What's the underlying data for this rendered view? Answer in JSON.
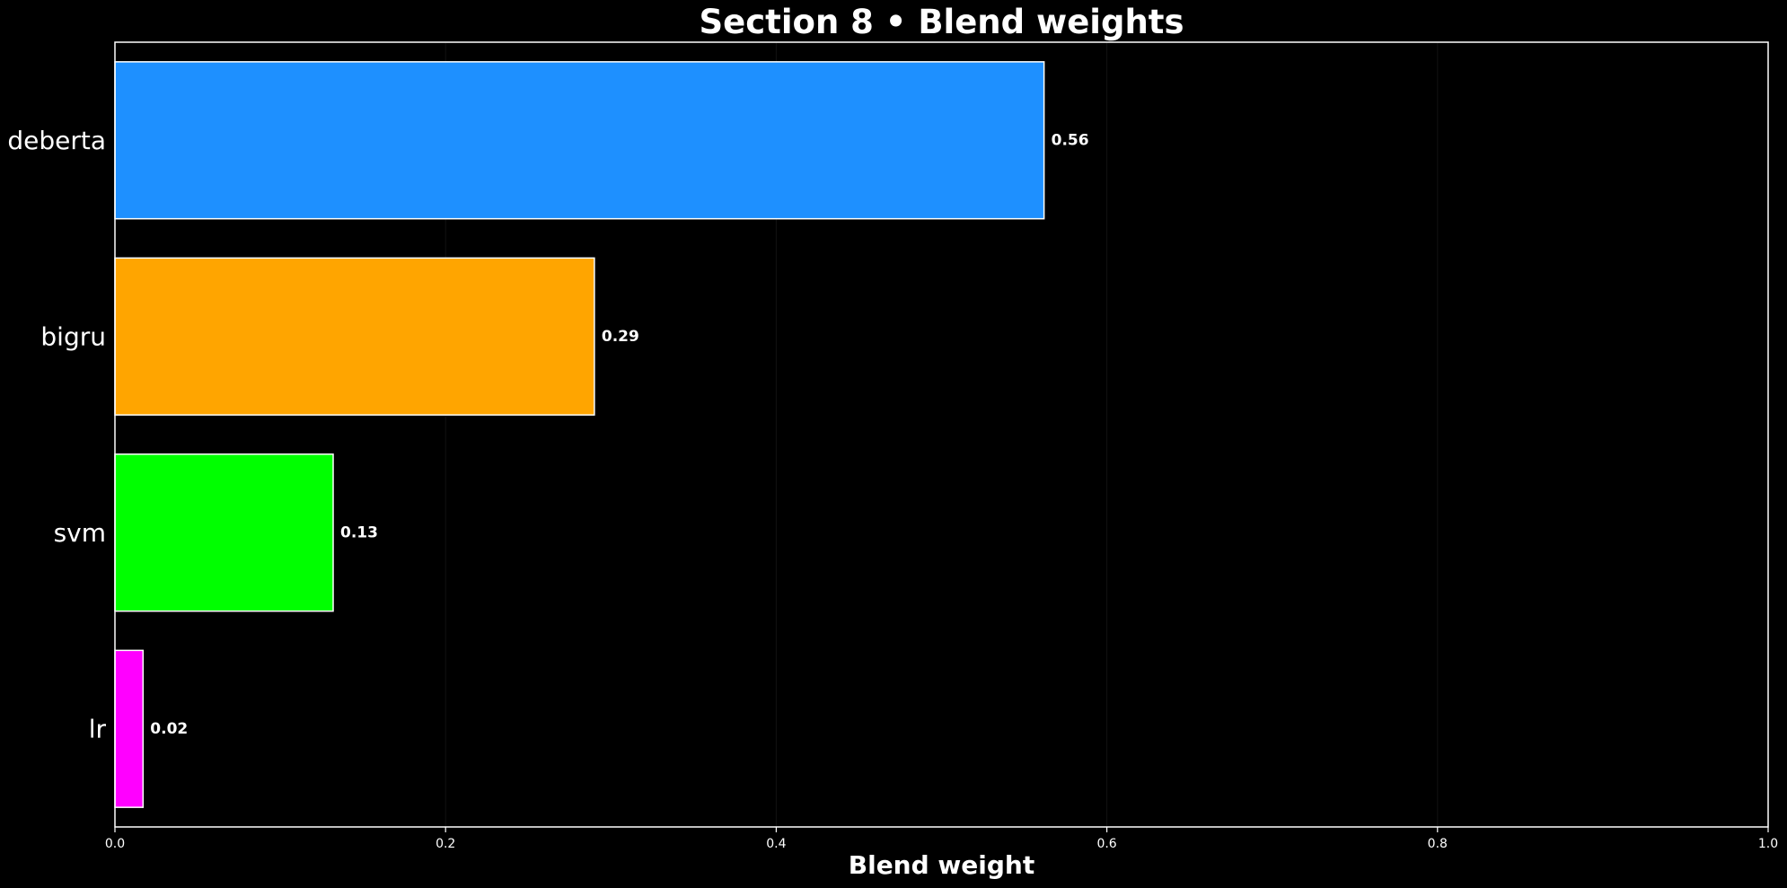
{
  "chart_data": {
    "type": "bar",
    "orientation": "horizontal",
    "title": "Section 8 • Blend weights",
    "xlabel": "Blend weight",
    "ylabel": "",
    "xlim": [
      0,
      1.0
    ],
    "x_ticks": [
      0.0,
      0.2,
      0.4,
      0.6,
      0.8,
      1.0
    ],
    "x_tick_labels": [
      "0.0",
      "0.2",
      "0.4",
      "0.6",
      "0.8",
      "1.0"
    ],
    "grid": "x-vertical-faint",
    "legend": "none",
    "categories": [
      "deberta",
      "bigru",
      "svm",
      "lr"
    ],
    "values": [
      0.562,
      0.29,
      0.132,
      0.017
    ],
    "value_labels": [
      "0.56",
      "0.29",
      "0.13",
      "0.02"
    ],
    "colors": [
      "#1e90ff",
      "#ffa500",
      "#00ff00",
      "#ff00ff"
    ],
    "bar_edge_color": "#ffffff",
    "background_color": "#000000",
    "text_color": "#ffffff"
  }
}
